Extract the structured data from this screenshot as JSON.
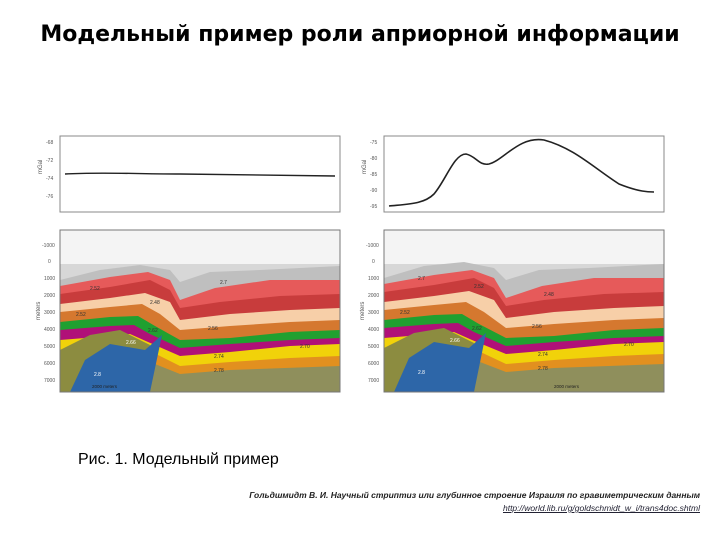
{
  "title": "Модельный пример роли априорной информации",
  "figure": {
    "left_panel": {
      "gravity_axis_label": "mGal",
      "gravity_ticks": [
        "-68",
        "-72",
        "-74",
        "-76"
      ],
      "depth_axis_label": "meters",
      "depth_ticks": [
        "-1000",
        "0",
        "1000",
        "2000",
        "3000",
        "4000",
        "5000",
        "6000",
        "7000"
      ],
      "layer_labels": [
        {
          "text": "2.7",
          "color": "#c8c8c8"
        },
        {
          "text": "2.52",
          "color": "#ea6565"
        },
        {
          "text": "2.48",
          "color": "#d24a4a"
        },
        {
          "text": "2.52",
          "color": "#f5c9a4"
        },
        {
          "text": "2.56",
          "color": "#d47a34"
        },
        {
          "text": "2.62",
          "color": "#22a033"
        },
        {
          "text": "2.66",
          "color": "#b1127a"
        },
        {
          "text": "2.70",
          "color": "#f0d000"
        },
        {
          "text": "2.74",
          "color": "#e08a20"
        },
        {
          "text": "2.78",
          "color": "#909060"
        },
        {
          "text": "2.8",
          "color": "#2b63a5"
        }
      ],
      "scale_label": "2000 meters"
    },
    "right_panel": {
      "gravity_axis_label": "mGal",
      "gravity_ticks": [
        "-75",
        "-80",
        "-85",
        "-90",
        "-95"
      ],
      "depth_axis_label": "meters",
      "depth_ticks": [
        "-1000",
        "0",
        "1000",
        "2000",
        "3000",
        "4000",
        "5000",
        "6000",
        "7000"
      ],
      "scale_label": "2000 meters"
    }
  },
  "caption": "Рис. 1. Модельный пример",
  "reference": {
    "citation": "Гольдшмидт В. И. Научный стриптиз или глубинное строение Израиля по гравиметрическим данным",
    "url": "http://world.lib.ru/g/goldschmidt_w_i/trans4doc.shtml"
  }
}
